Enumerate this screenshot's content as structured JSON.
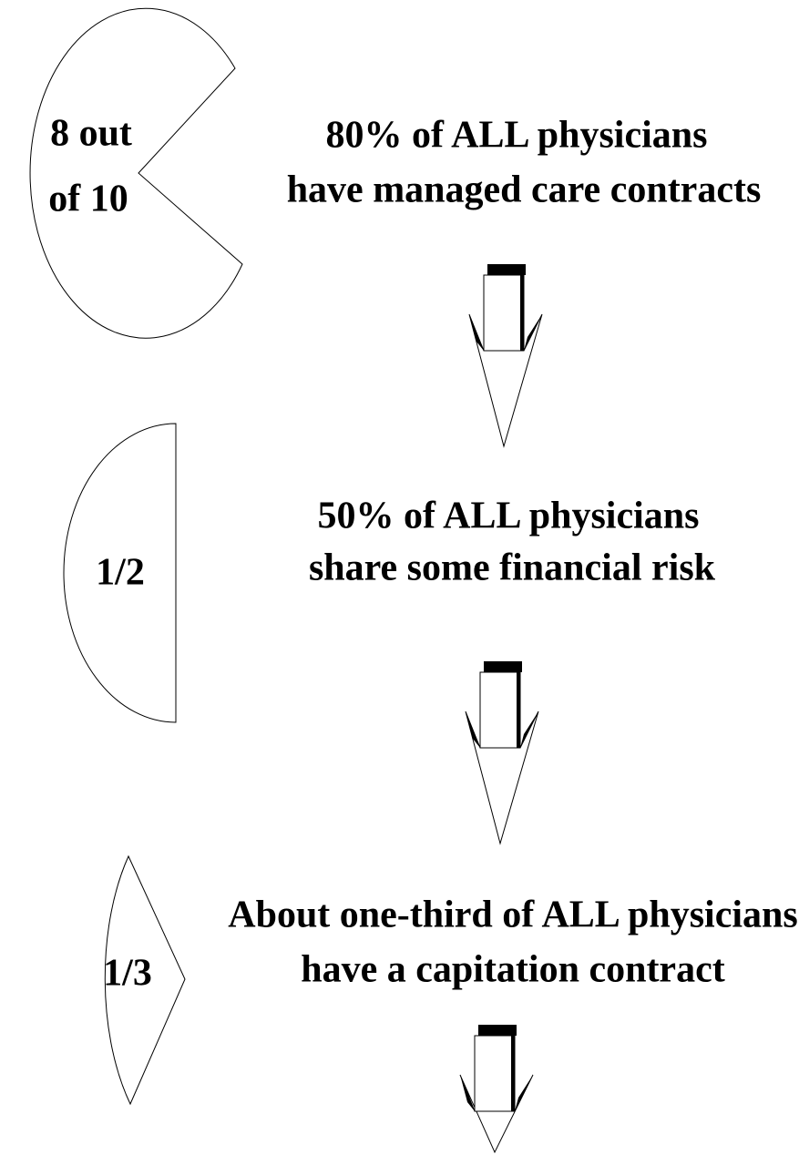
{
  "steps": [
    {
      "fraction": [
        "8 out",
        "of 10"
      ],
      "text": [
        "80% of ALL physicians",
        "have managed care contracts"
      ]
    },
    {
      "fraction": [
        "1/2"
      ],
      "text": [
        "50% of ALL physicians",
        "share some financial risk"
      ]
    },
    {
      "fraction": [
        "1/3"
      ],
      "text": [
        "About one-third of ALL physicians",
        "have a capitation contract"
      ]
    }
  ]
}
